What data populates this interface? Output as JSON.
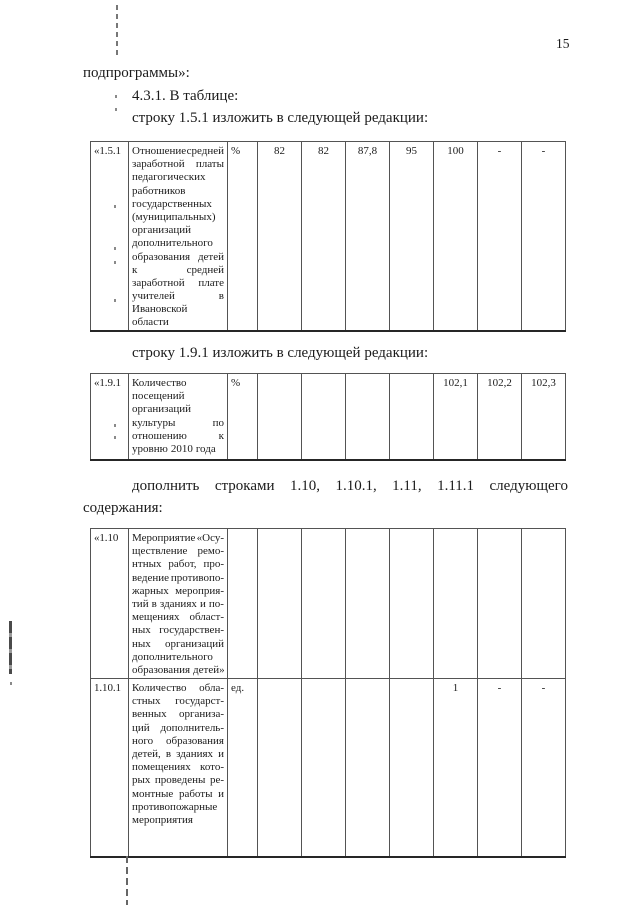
{
  "page": {
    "number": "15"
  },
  "paragraphs": {
    "intro": "подпрограммы»:",
    "clause": "4.3.1. В таблице:",
    "row_151": "строку 1.5.1 изложить в следующей редакции:",
    "row_191": "строку 1.9.1 изложить в следующей редакции:",
    "add_rows_line1": "дополнить строками 1.10, 1.10.1, 1.11, 1.11.1 следующего",
    "add_rows_line2": "содержания:"
  },
  "tables": {
    "t1": {
      "rows": [
        {
          "num": "«1.5.1",
          "name_lines": [
            "Отношение средней",
            "заработной платы",
            "педагогических",
            "работников",
            "государственных",
            "(муниципальных)",
            "организаций",
            "дополнительного",
            "образования детей",
            "к средней",
            "заработной плате",
            "учителей в",
            "Ивановской",
            "области"
          ],
          "unit": "%",
          "values": [
            "82",
            "82",
            "87,8",
            "95",
            "100",
            "-",
            "-"
          ]
        }
      ]
    },
    "t2": {
      "rows": [
        {
          "num": "«1.9.1",
          "name_lines": [
            "Количество",
            "посещений",
            "организаций",
            "культуры по",
            "отношению к",
            "уровню 2010 года"
          ],
          "unit": "%",
          "values": [
            "",
            "",
            "",
            "",
            "102,1",
            "102,2",
            "102,3"
          ]
        }
      ]
    },
    "t3": {
      "rows": [
        {
          "num": "«1.10",
          "name_lines": [
            "Мероприятие «Осу-",
            "ществление ремо-",
            "нтных работ, про-",
            "ведение противопо-",
            "жарных мероприя-",
            "тий в зданиях и по-",
            "мещениях област-",
            "ных государствен-",
            "ных организаций",
            "дополнительного",
            "образования детей»"
          ],
          "unit": "",
          "values": [
            "",
            "",
            "",
            "",
            "",
            "",
            ""
          ]
        },
        {
          "num": "1.10.1",
          "name_lines": [
            "Количество обла-",
            "стных государст-",
            "венных организа-",
            "ций дополнитель-",
            "ного образования",
            "детей, в зданиях и",
            "помещениях кото-",
            "рых проведены ре-",
            "монтные работы и",
            "противопожарные",
            "мероприятия"
          ],
          "unit": "ед.",
          "values": [
            "",
            "",
            "",
            "",
            "1",
            "-",
            "-"
          ]
        }
      ]
    }
  }
}
